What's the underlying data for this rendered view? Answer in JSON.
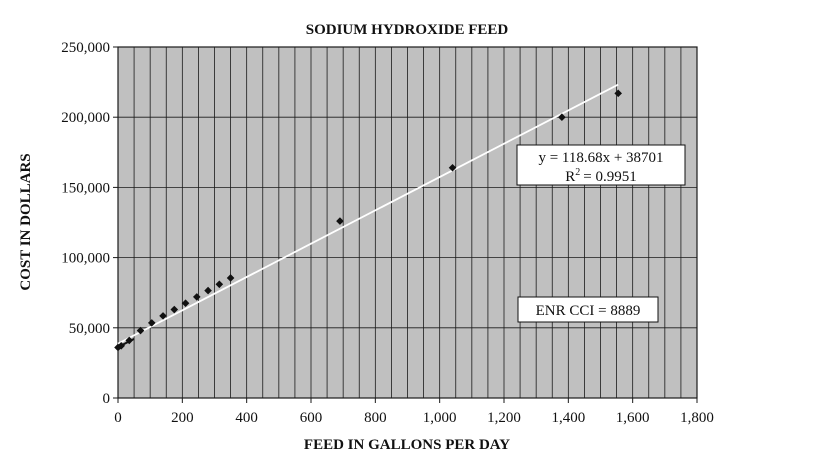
{
  "chart_data": {
    "type": "scatter",
    "title": "SODIUM HYDROXIDE FEED",
    "xlabel": "FEED IN GALLONS PER DAY",
    "ylabel": "COST IN DOLLARS",
    "xlim": [
      0,
      1800
    ],
    "ylim": [
      0,
      250000
    ],
    "x_ticks": [
      "0",
      "200",
      "400",
      "600",
      "800",
      "1,000",
      "1,200",
      "1,400",
      "1,600",
      "1,800"
    ],
    "y_ticks": [
      "0",
      "50,000",
      "100,000",
      "150,000",
      "200,000",
      "250,000"
    ],
    "grid": true,
    "minor_vertical_gridlines_per_major": 4,
    "plot_background": "#c0c0c0",
    "points": [
      {
        "x": 0,
        "y": 36000
      },
      {
        "x": 10,
        "y": 37200
      },
      {
        "x": 35,
        "y": 41000
      },
      {
        "x": 70,
        "y": 48000
      },
      {
        "x": 105,
        "y": 53500
      },
      {
        "x": 140,
        "y": 58500
      },
      {
        "x": 175,
        "y": 63000
      },
      {
        "x": 210,
        "y": 67500
      },
      {
        "x": 245,
        "y": 72000
      },
      {
        "x": 280,
        "y": 76500
      },
      {
        "x": 315,
        "y": 81000
      },
      {
        "x": 350,
        "y": 85500
      },
      {
        "x": 690,
        "y": 126000
      },
      {
        "x": 1040,
        "y": 164000
      },
      {
        "x": 1380,
        "y": 200000
      },
      {
        "x": 1555,
        "y": 217000
      }
    ],
    "trendline": {
      "slope": 118.68,
      "intercept": 38701,
      "x_range": [
        0,
        1555
      ],
      "equation_label": "y = 118.68x + 38701",
      "r2_prefix": "R",
      "r2_sup": "2",
      "r2_value": "= 0.9951"
    },
    "annotation": "ENR CCI = 8889",
    "colors": {
      "plot_bg": "#c0c0c0",
      "grid": "#1a1a1a",
      "marker": "#111111",
      "trendline": "#ffffff",
      "box_bg": "#ffffff",
      "box_border": "#111111"
    }
  }
}
